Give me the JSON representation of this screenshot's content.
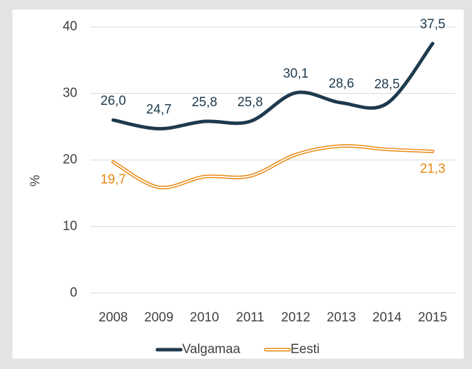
{
  "chart_data": {
    "type": "line",
    "categories": [
      "2008",
      "2009",
      "2010",
      "2011",
      "2012",
      "2013",
      "2014",
      "2015"
    ],
    "y_label": "%",
    "ylim": [
      0,
      40
    ],
    "yticks": [
      0,
      10,
      20,
      30,
      40
    ],
    "grid": true,
    "legend": "bottom",
    "series": [
      {
        "name": "Valgamaa",
        "color": "#1e3a4e",
        "values": [
          26.0,
          24.7,
          25.8,
          25.8,
          30.1,
          28.6,
          28.5,
          37.5
        ],
        "value_labels": [
          "26,0",
          "24,7",
          "25,8",
          "25,8",
          "30,1",
          "28,6",
          "28,5",
          "37,5"
        ]
      },
      {
        "name": "Eesti",
        "color": "#e8870f",
        "values": [
          19.7,
          15.9,
          17.5,
          17.6,
          20.8,
          22.1,
          21.6,
          21.3
        ],
        "value_labels": [
          "19,7",
          null,
          null,
          null,
          null,
          null,
          null,
          "21,3"
        ]
      }
    ]
  }
}
